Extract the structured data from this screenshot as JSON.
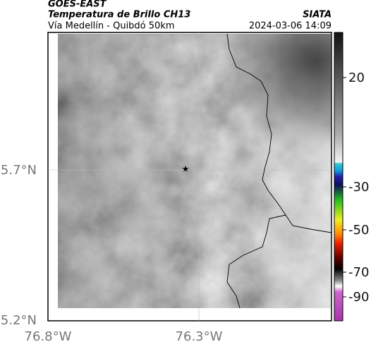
{
  "header": {
    "title": "GOES-EAST",
    "product": "Temperatura de Brillo CH13",
    "region": "Vía Medellín - Quibdó 50km",
    "source": "SIATA",
    "datetime": "2024-03-06 14:09"
  },
  "map": {
    "lat_labels": [
      "5.7°N",
      "5.2°N"
    ],
    "lon_labels": [
      "76.8°W",
      "76.3°W"
    ]
  },
  "colorbar": {
    "ticks": [
      20,
      -30,
      -50,
      -70,
      -90
    ]
  }
}
